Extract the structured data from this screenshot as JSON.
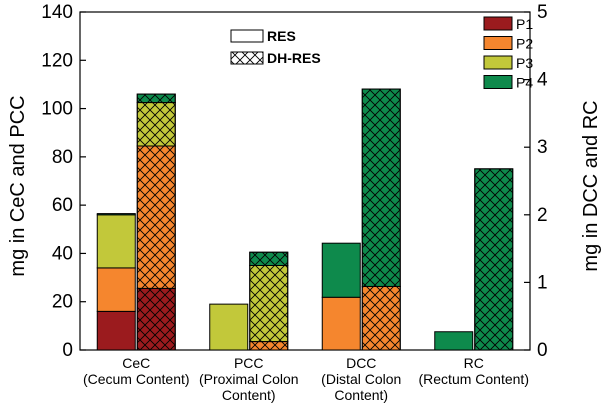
{
  "chart_data": {
    "type": "bar",
    "stacked": true,
    "categories": [
      {
        "lines": [
          "CeC",
          "(Cecum Content)"
        ],
        "axis": "left"
      },
      {
        "lines": [
          "PCC",
          "(Proximal Colon",
          "Content)"
        ],
        "axis": "left"
      },
      {
        "lines": [
          "DCC",
          "(Distal Colon",
          "Content)"
        ],
        "axis": "right"
      },
      {
        "lines": [
          "RC",
          "(Rectum Content)"
        ],
        "axis": "right"
      }
    ],
    "treatments": [
      {
        "name": "RES",
        "pattern": "solid"
      },
      {
        "name": "DH-RES",
        "pattern": "crosshatch"
      }
    ],
    "series": [
      {
        "name": "P1",
        "color": "#9b1b1e"
      },
      {
        "name": "P2",
        "color": "#f5862e"
      },
      {
        "name": "P3",
        "color": "#c2c83a"
      },
      {
        "name": "P4",
        "color": "#0e8a4c"
      }
    ],
    "bars": [
      {
        "category": 0,
        "treatment": "RES",
        "values": [
          16,
          18,
          22,
          0.5
        ]
      },
      {
        "category": 0,
        "treatment": "DH-RES",
        "values": [
          25.5,
          59,
          18,
          3.5
        ]
      },
      {
        "category": 1,
        "treatment": "RES",
        "values": [
          0,
          0,
          19,
          0
        ]
      },
      {
        "category": 1,
        "treatment": "DH-RES",
        "values": [
          0,
          3.5,
          31.5,
          5.5
        ]
      },
      {
        "category": 2,
        "treatment": "RES",
        "values": [
          0,
          0.78,
          0,
          0.8
        ]
      },
      {
        "category": 2,
        "treatment": "DH-RES",
        "values": [
          0,
          0.94,
          0,
          2.92
        ]
      },
      {
        "category": 3,
        "treatment": "RES",
        "values": [
          0,
          0,
          0,
          0.27
        ]
      },
      {
        "category": 3,
        "treatment": "DH-RES",
        "values": [
          0,
          0,
          0,
          2.68
        ]
      }
    ],
    "ylabel_left": "mg in CeC and PCC",
    "ylabel_right": "mg in DCC and RC",
    "ylim_left": [
      0,
      140
    ],
    "ylim_right": [
      0,
      5
    ],
    "yticks_left": [
      "0",
      "20",
      "40",
      "60",
      "80",
      "100",
      "120",
      "140"
    ],
    "yticks_right": [
      "0",
      "1",
      "2",
      "3",
      "4",
      "5"
    ],
    "legend_placement": "top-right",
    "treatment_legend_placement": "top-center",
    "grid": false
  }
}
